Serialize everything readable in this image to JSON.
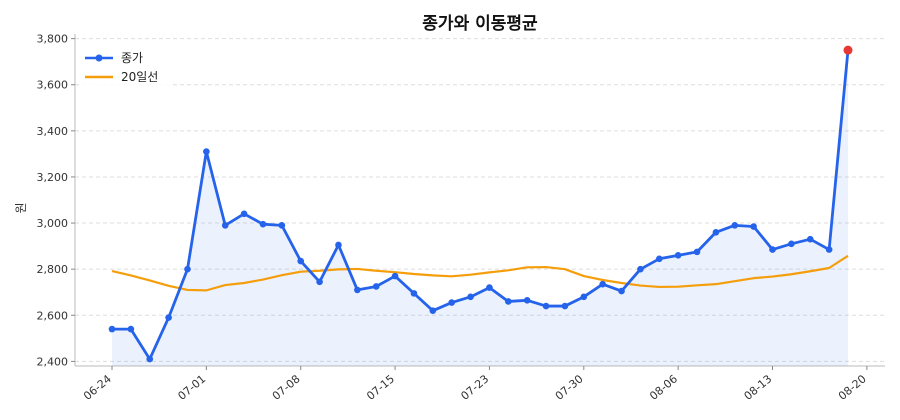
{
  "chart_data": {
    "type": "line",
    "title": "종가와 이동평균",
    "xlabel": "",
    "ylabel": "원",
    "ylim": [
      2380,
      3820
    ],
    "yticks": [
      2400,
      2600,
      2800,
      3000,
      3200,
      3400,
      3600,
      3800
    ],
    "ytick_labels": [
      "2,400",
      "2,600",
      "2,800",
      "3,000",
      "3,200",
      "3,400",
      "3,600",
      "3,800"
    ],
    "xtick_labels": [
      "06-24",
      "07-01",
      "07-08",
      "07-15",
      "07-23",
      "07-30",
      "08-06",
      "08-13",
      "08-20"
    ],
    "xtick_index": [
      0,
      5,
      10,
      15,
      20,
      25,
      30,
      35,
      40
    ],
    "grid": true,
    "legend_position": "top-left",
    "series": [
      {
        "name": "종가",
        "color": "#2563eb",
        "marker": "circle",
        "values": [
          2540,
          2540,
          2410,
          2590,
          2800,
          3310,
          2990,
          3040,
          2995,
          2990,
          2835,
          2745,
          2905,
          2710,
          2725,
          2770,
          2695,
          2620,
          2655,
          2680,
          2720,
          2660,
          2665,
          2640,
          2640,
          2680,
          2735,
          2705,
          2800,
          2845,
          2860,
          2875,
          2960,
          2990,
          2985,
          2885,
          2910,
          2930,
          2885,
          3750
        ]
      },
      {
        "name": "20일선",
        "color": "#f59e0b",
        "marker": "none",
        "values": [
          2792,
          2773,
          2751,
          2728,
          2710,
          2708,
          2731,
          2740,
          2755,
          2774,
          2789,
          2793,
          2799,
          2801,
          2793,
          2787,
          2779,
          2773,
          2769,
          2776,
          2786,
          2795,
          2808,
          2809,
          2800,
          2770,
          2753,
          2740,
          2729,
          2723,
          2724,
          2730,
          2735,
          2748,
          2761,
          2768,
          2778,
          2791,
          2805,
          2858
        ]
      }
    ],
    "highlight_last_point_color": "#e53935"
  }
}
